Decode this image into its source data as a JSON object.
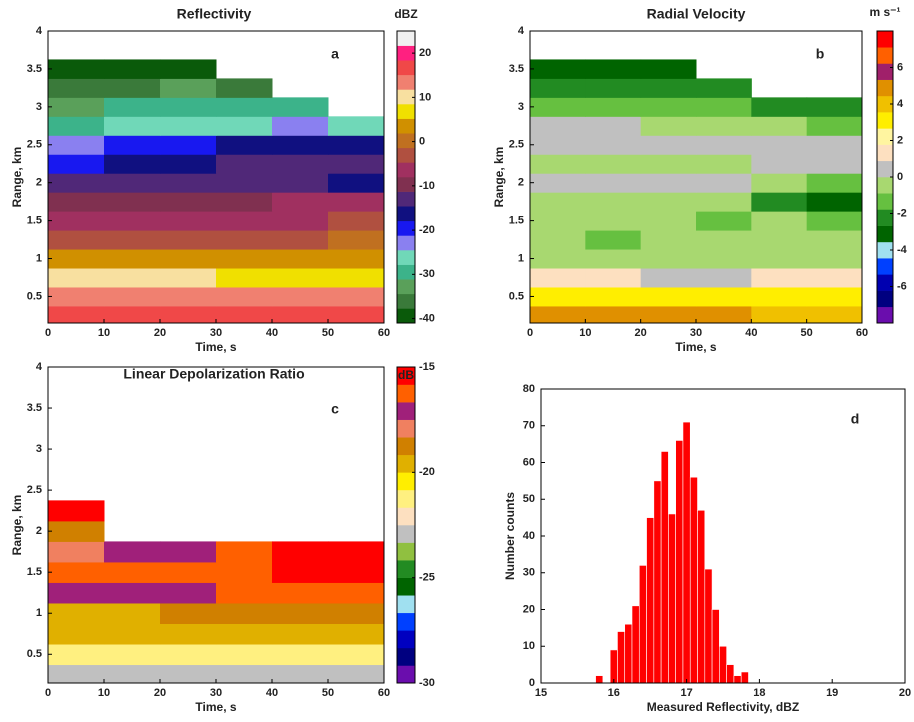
{
  "chart_data": [
    {
      "type": "contour",
      "title": "Reflectivity",
      "annotation": "a",
      "xlabel": "Time, s",
      "ylabel": "Range, km",
      "colorbar_label": "dBZ",
      "xlim": [
        0,
        60
      ],
      "xticks": [
        0,
        10,
        20,
        30,
        40,
        50,
        60
      ],
      "ylim": [
        0.15,
        4
      ],
      "yticks": [
        0.5,
        1,
        1.5,
        2,
        2.5,
        3,
        3.5,
        4
      ],
      "clim": [
        -41,
        25
      ],
      "cticks": [
        -40,
        -30,
        -20,
        -10,
        0,
        10,
        20
      ],
      "colors": [
        "#0a5a0a",
        "#3a7a3a",
        "#5aa05a",
        "#3cb38a",
        "#70d8b8",
        "#8a80f0",
        "#1818f0",
        "#101080",
        "#502878",
        "#803050",
        "#a03060",
        "#b05040",
        "#c07020",
        "#d09000",
        "#f0e000",
        "#f8e0a0",
        "#f08070",
        "#f04848",
        "#ff2080",
        "#f0f0f0"
      ],
      "x": [
        5,
        15,
        25,
        35,
        45,
        55
      ],
      "y": [
        0.25,
        0.5,
        0.75,
        1,
        1.25,
        1.5,
        1.75,
        2,
        2.25,
        2.5,
        2.75,
        3,
        3.25,
        3.5
      ],
      "z": [
        [
          18,
          18,
          18,
          18,
          18,
          18
        ],
        [
          14,
          14,
          14,
          14,
          14,
          14
        ],
        [
          9,
          9,
          9,
          8,
          8,
          8
        ],
        [
          4,
          4,
          4,
          4,
          4,
          4
        ],
        [
          -2,
          -2,
          -2,
          -2,
          -2,
          -1
        ],
        [
          -6,
          -6,
          -5,
          -5,
          -5,
          -4
        ],
        [
          -9,
          -9,
          -9,
          -9,
          -8,
          -8
        ],
        [
          -12,
          -14,
          -14,
          -13,
          -13,
          -16
        ],
        [
          -18,
          -17,
          -16,
          -14,
          -13,
          -12
        ],
        [
          -22,
          -20,
          -19,
          -17,
          -16,
          -15
        ],
        [
          -28,
          -27,
          -26,
          -25,
          -24,
          -26
        ],
        [
          -32,
          -31,
          -30,
          -30,
          -30,
          null
        ],
        [
          -35,
          -35,
          -34,
          -35,
          null,
          null
        ],
        [
          -39,
          -39,
          -39,
          null,
          null,
          null
        ]
      ]
    },
    {
      "type": "contour",
      "title": "Radial Velocity",
      "annotation": "b",
      "xlabel": "Time, s",
      "ylabel": "Range, km",
      "colorbar_label": "m s⁻¹",
      "xlim": [
        0,
        60
      ],
      "xticks": [
        0,
        10,
        20,
        30,
        40,
        50,
        60
      ],
      "ylim": [
        0.15,
        4
      ],
      "yticks": [
        0.5,
        1,
        1.5,
        2,
        2.5,
        3,
        3.5,
        4
      ],
      "clim": [
        -8,
        8
      ],
      "cticks": [
        -6,
        -4,
        -2,
        0,
        2,
        4,
        6
      ],
      "colors": [
        "#6a0dad",
        "#000080",
        "#0000b0",
        "#0040ff",
        "#a0e0f0",
        "#006400",
        "#228b22",
        "#66c040",
        "#a8d870",
        "#c0c0c0",
        "#fde0c0",
        "#fff5a0",
        "#ffee00",
        "#f0c000",
        "#e09000",
        "#a0206a",
        "#ff6000",
        "#ff0000"
      ],
      "x": [
        5,
        15,
        25,
        35,
        45,
        55
      ],
      "y": [
        0.25,
        0.5,
        0.75,
        1,
        1.25,
        1.5,
        1.75,
        2,
        2.25,
        2.5,
        2.75,
        3,
        3.25,
        3.5
      ],
      "z": [
        [
          5,
          5,
          5,
          5,
          4,
          4
        ],
        [
          3,
          3,
          3,
          3,
          3,
          3
        ],
        [
          1,
          1,
          0.5,
          0.5,
          1,
          1
        ],
        [
          -0.8,
          -0.8,
          -0.8,
          -0.8,
          -0.8,
          -0.8
        ],
        [
          -0.8,
          -1.5,
          -0.8,
          -0.8,
          -0.8,
          -0.8
        ],
        [
          -0.8,
          -0.8,
          -0.8,
          -1.5,
          -0.8,
          -1.5
        ],
        [
          -0.8,
          -0.8,
          -0.8,
          -0.8,
          -2.5,
          -3
        ],
        [
          0,
          0,
          0,
          0,
          -0.8,
          -1.5
        ],
        [
          -0.8,
          -0.8,
          -0.8,
          -0.8,
          0,
          0
        ],
        [
          0,
          0,
          0,
          0,
          0,
          0
        ],
        [
          0,
          0,
          -0.8,
          -0.8,
          -0.8,
          -1.5
        ],
        [
          -1.5,
          -1.5,
          -1.5,
          -1.5,
          -2.5,
          -2.5
        ],
        [
          -2.5,
          -2.5,
          -2.5,
          -2.5,
          null,
          null
        ],
        [
          -3,
          -3,
          -3,
          null,
          null,
          null
        ]
      ]
    },
    {
      "type": "contour",
      "title": "Linear Depolarization Ratio",
      "annotation": "c",
      "xlabel": "Time, s",
      "ylabel": "Range, km",
      "colorbar_label": "dB",
      "xlim": [
        0,
        60
      ],
      "xticks": [
        0,
        10,
        20,
        30,
        40,
        50,
        60
      ],
      "ylim": [
        0.15,
        4
      ],
      "yticks": [
        0.5,
        1,
        1.5,
        2,
        2.5,
        3,
        3.5,
        4
      ],
      "clim": [
        -30,
        -15
      ],
      "cticks": [
        -30,
        -25,
        -20,
        -15
      ],
      "colors": [
        "#6a0dad",
        "#000080",
        "#0000c0",
        "#0040ff",
        "#a0e0f0",
        "#006400",
        "#228b22",
        "#90c040",
        "#c0c0c0",
        "#fde0c0",
        "#fff080",
        "#ffee00",
        "#e0b000",
        "#d08000",
        "#f08060",
        "#a0207a",
        "#ff6000",
        "#ff0000"
      ],
      "x": [
        5,
        15,
        25,
        35,
        45,
        55
      ],
      "y": [
        0.25,
        0.5,
        0.75,
        1,
        1.25,
        1.5,
        1.75,
        2,
        2.25,
        2.5,
        2.75,
        3,
        3.25,
        3.5
      ],
      "z": [
        [
          -23,
          -23,
          -23,
          -23,
          -23,
          -23
        ],
        [
          -21.5,
          -21.5,
          -21.5,
          -21.5,
          -21,
          -21
        ],
        [
          -20,
          -20,
          -20,
          -20,
          -20,
          -20
        ],
        [
          -19.5,
          -19.5,
          -19,
          -19,
          -19,
          -19
        ],
        [
          -17,
          -17,
          -17,
          -16,
          -16,
          -16
        ],
        [
          -16,
          -16,
          -16,
          -16,
          -15.5,
          -15.5
        ],
        [
          -18,
          -17.5,
          -17,
          -16,
          -15.5,
          -15.5
        ],
        [
          -19,
          null,
          null,
          null,
          null,
          null
        ],
        [
          -15.5,
          null,
          null,
          null,
          null,
          null
        ],
        [
          null,
          null,
          null,
          null,
          null,
          null
        ],
        [
          null,
          null,
          null,
          null,
          null,
          null
        ],
        [
          null,
          null,
          null,
          null,
          null,
          null
        ],
        [
          null,
          null,
          null,
          null,
          null,
          null
        ],
        [
          null,
          null,
          null,
          null,
          null,
          null
        ]
      ]
    },
    {
      "type": "histogram",
      "annotation": "d",
      "xlabel": "Measured Reflectivity, dBZ",
      "ylabel": "Number counts",
      "color": "#ff0000",
      "xlim": [
        15,
        20
      ],
      "xticks": [
        15,
        16,
        17,
        18,
        19,
        20
      ],
      "ylim": [
        0,
        80
      ],
      "yticks": [
        0,
        10,
        20,
        30,
        40,
        50,
        60,
        70,
        80
      ],
      "bins": [
        15.75,
        15.85,
        15.95,
        16.05,
        16.15,
        16.25,
        16.35,
        16.45,
        16.55,
        16.65,
        16.75,
        16.85,
        16.95,
        17.05,
        17.15,
        17.25,
        17.35,
        17.45,
        17.55,
        17.65,
        17.75,
        17.85
      ],
      "values": [
        2,
        0,
        9,
        14,
        16,
        21,
        32,
        45,
        55,
        63,
        46,
        66,
        71,
        56,
        47,
        31,
        20,
        10,
        5,
        2,
        3
      ]
    }
  ]
}
